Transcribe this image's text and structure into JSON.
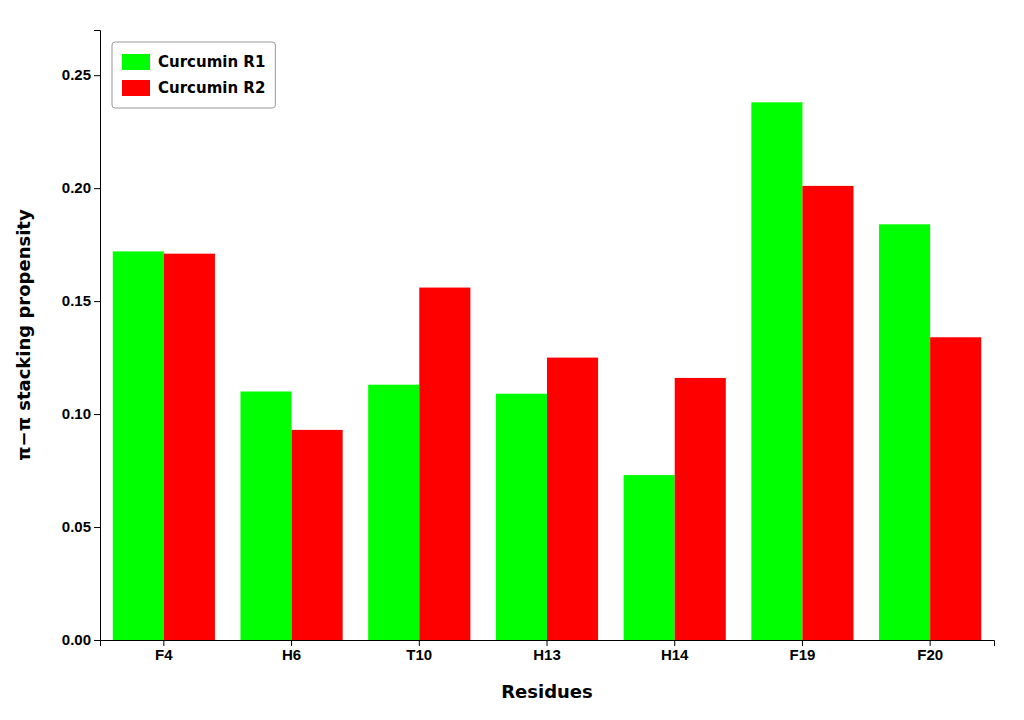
{
  "chart_data": {
    "type": "bar",
    "xlabel": "Residues",
    "ylabel": "π−π stacking propensity",
    "categories": [
      "F4",
      "H6",
      "T10",
      "H13",
      "H14",
      "F19",
      "F20"
    ],
    "series": [
      {
        "name": "Curcumin R1",
        "color": "#00FF00",
        "values": [
          0.172,
          0.11,
          0.113,
          0.109,
          0.073,
          0.238,
          0.184
        ]
      },
      {
        "name": "Curcumin R2",
        "color": "#FF0000",
        "values": [
          0.171,
          0.093,
          0.156,
          0.125,
          0.116,
          0.201,
          0.134
        ]
      }
    ],
    "ylim": [
      0,
      0.27
    ],
    "yticks": [
      {
        "value": 0,
        "label": "0.00"
      },
      {
        "value": 0.05,
        "label": "0.05"
      },
      {
        "value": 0.1,
        "label": "0.10"
      },
      {
        "value": 0.15,
        "label": "0.15"
      },
      {
        "value": 0.2,
        "label": "0.20"
      },
      {
        "value": 0.25,
        "label": "0.25"
      }
    ],
    "grid": false,
    "legend": "upper-left"
  }
}
